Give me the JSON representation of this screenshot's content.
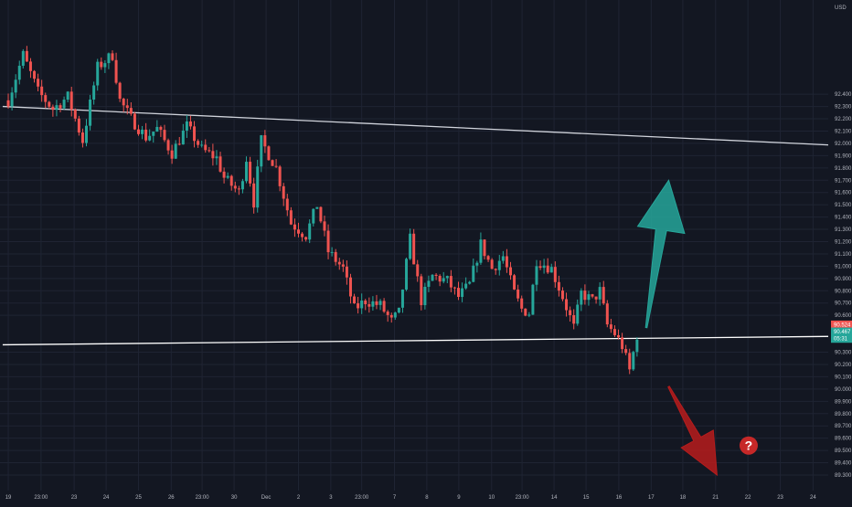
{
  "chart_data": {
    "type": "candlestick",
    "currency_label": "USD",
    "price_axis": {
      "range": [
        89.3,
        93.1
      ],
      "ticks": [
        92.4,
        92.3,
        92.2,
        92.1,
        92.0,
        91.9,
        91.8,
        91.7,
        91.6,
        91.5,
        91.4,
        91.3,
        91.2,
        91.1,
        91.0,
        90.9,
        90.8,
        90.7,
        90.6,
        90.3,
        90.2,
        90.1,
        90.0,
        89.9,
        89.8,
        89.7,
        89.6,
        89.5,
        89.4,
        89.3
      ],
      "tick_labels": [
        "92.400",
        "92.300",
        "92.200",
        "92.100",
        "92.000",
        "91.900",
        "91.800",
        "91.700",
        "91.600",
        "91.500",
        "91.400",
        "91.300",
        "91.200",
        "91.100",
        "91.000",
        "90.900",
        "90.800",
        "90.700",
        "90.600",
        "90.300",
        "90.200",
        "90.100",
        "90.000",
        "89.900",
        "89.800",
        "89.700",
        "89.600",
        "89.500",
        "89.400",
        "89.300"
      ]
    },
    "price_badges": [
      {
        "value": 90.524,
        "label": "90.524",
        "color": "#ef5350"
      },
      {
        "value": 90.467,
        "label": "90.467",
        "color": "#26a69a"
      },
      {
        "value": 90.41,
        "label": "05:31",
        "color": "#26a69a"
      }
    ],
    "time_axis": {
      "labels": [
        {
          "text": "19",
          "slot": 0.5
        },
        {
          "text": "23:00",
          "slot": 9.3
        },
        {
          "text": "23",
          "slot": 18.2
        },
        {
          "text": "24",
          "slot": 26.8
        },
        {
          "text": "25",
          "slot": 35.5
        },
        {
          "text": "26",
          "slot": 44.3
        },
        {
          "text": "23:00",
          "slot": 52.6
        },
        {
          "text": "30",
          "slot": 61.2
        },
        {
          "text": "Dec",
          "slot": 69.8
        },
        {
          "text": "2",
          "slot": 78.5
        },
        {
          "text": "3",
          "slot": 87.2
        },
        {
          "text": "23:00",
          "slot": 95.5
        },
        {
          "text": "7",
          "slot": 104.3
        },
        {
          "text": "8",
          "slot": 113.0
        },
        {
          "text": "9",
          "slot": 121.6
        },
        {
          "text": "10",
          "slot": 130.4
        },
        {
          "text": "23:00",
          "slot": 138.6
        },
        {
          "text": "14",
          "slot": 147.2
        },
        {
          "text": "15",
          "slot": 155.8
        },
        {
          "text": "16",
          "slot": 164.6
        },
        {
          "text": "17",
          "slot": 173.3
        },
        {
          "text": "18",
          "slot": 181.8
        },
        {
          "text": "21",
          "slot": 190.6
        },
        {
          "text": "22",
          "slot": 199.3
        },
        {
          "text": "23",
          "slot": 208.0
        },
        {
          "text": "24",
          "slot": 216.8
        }
      ]
    },
    "candles": {
      "count": 170,
      "anchors": [
        [
          0,
          92.35
        ],
        [
          4,
          92.72
        ],
        [
          8,
          92.42
        ],
        [
          12,
          92.28
        ],
        [
          16,
          92.38
        ],
        [
          20,
          92.02
        ],
        [
          24,
          92.62
        ],
        [
          28,
          92.72
        ],
        [
          30,
          92.35
        ],
        [
          33,
          92.2
        ],
        [
          37,
          92.05
        ],
        [
          40,
          92.12
        ],
        [
          44,
          91.92
        ],
        [
          48,
          92.14
        ],
        [
          52,
          91.95
        ],
        [
          56,
          91.88
        ],
        [
          58,
          91.72
        ],
        [
          62,
          91.6
        ],
        [
          64,
          91.88
        ],
        [
          66,
          91.52
        ],
        [
          68,
          92.02
        ],
        [
          72,
          91.8
        ],
        [
          76,
          91.35
        ],
        [
          80,
          91.25
        ],
        [
          83,
          91.5
        ],
        [
          86,
          91.12
        ],
        [
          90,
          90.98
        ],
        [
          93,
          90.65
        ],
        [
          96,
          90.72
        ],
        [
          100,
          90.68
        ],
        [
          103,
          90.55
        ],
        [
          105,
          90.62
        ],
        [
          108,
          91.22
        ],
        [
          111,
          90.72
        ],
        [
          114,
          90.92
        ],
        [
          118,
          90.88
        ],
        [
          121,
          90.75
        ],
        [
          124,
          90.85
        ],
        [
          127,
          91.18
        ],
        [
          130,
          90.98
        ],
        [
          133,
          91.08
        ],
        [
          136,
          90.78
        ],
        [
          138,
          90.65
        ],
        [
          140,
          90.62
        ],
        [
          142,
          91.05
        ],
        [
          146,
          90.98
        ],
        [
          149,
          90.75
        ],
        [
          152,
          90.5
        ],
        [
          154,
          90.78
        ],
        [
          157,
          90.72
        ],
        [
          159,
          90.8
        ],
        [
          161,
          90.52
        ],
        [
          163,
          90.45
        ],
        [
          165,
          90.35
        ],
        [
          167,
          90.15
        ],
        [
          169,
          90.44
        ]
      ]
    },
    "trendlines": [
      {
        "from": [
          -1,
          92.3
        ],
        "to": [
          226,
          91.98
        ],
        "color": "#d1d4dc"
      },
      {
        "from": [
          -1,
          90.36
        ],
        "to": [
          226,
          90.43
        ],
        "color": "#ffffff"
      }
    ],
    "annotations": [
      {
        "kind": "arrow-up",
        "color": "#26a69a",
        "from": [
          172,
          90.5
        ],
        "to": [
          178,
          91.7
        ]
      },
      {
        "kind": "arrow-down",
        "color": "#b71c1c",
        "from": [
          178,
          90.02
        ],
        "to": [
          191,
          89.3
        ]
      },
      {
        "kind": "question-mark",
        "color": "#c62828",
        "at": [
          199.5,
          89.54
        ]
      }
    ],
    "colors": {
      "up": "#26a69a",
      "down": "#ef5350",
      "background": "#131722",
      "grid": "#1f2433",
      "axis_text": "#b2b5be"
    }
  }
}
